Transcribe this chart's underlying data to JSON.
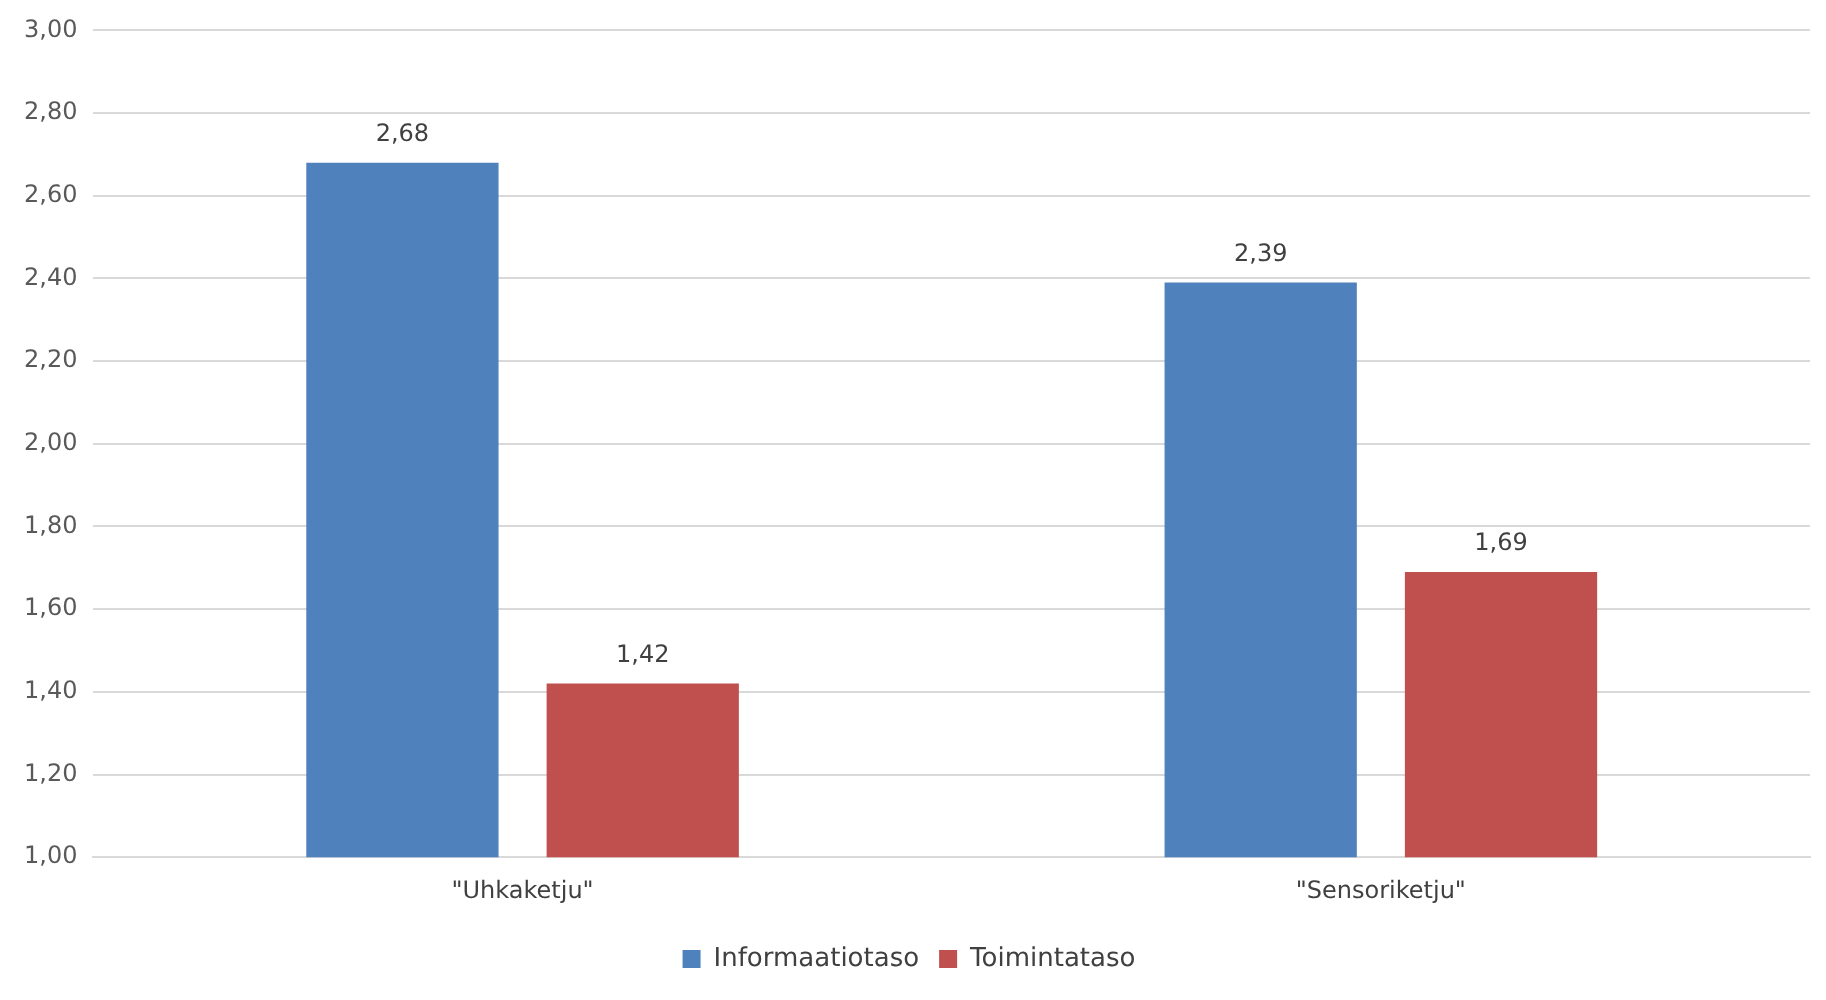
{
  "chart_data": {
    "type": "bar",
    "categories": [
      "\"Uhkaketju\"",
      "\"Sensoriketju\""
    ],
    "series": [
      {
        "name": "Informaatiotaso",
        "color": "#4f81bd",
        "values": [
          2.68,
          2.39
        ],
        "value_labels": [
          "2,68",
          "2,39"
        ]
      },
      {
        "name": "Toimintataso",
        "color": "#c0504d",
        "values": [
          1.42,
          1.69
        ],
        "value_labels": [
          "1,42",
          "1,69"
        ]
      }
    ],
    "ylim": [
      1,
      3
    ],
    "yticks": [
      {
        "value": 1,
        "label": "1,00"
      },
      {
        "value": 1.2,
        "label": "1,20"
      },
      {
        "value": 1.4,
        "label": "1,40"
      },
      {
        "value": 1.6,
        "label": "1,60"
      },
      {
        "value": 1.8,
        "label": "1,80"
      },
      {
        "value": 2,
        "label": "2,00"
      },
      {
        "value": 2.2,
        "label": "2,20"
      },
      {
        "value": 2.4,
        "label": "2,40"
      },
      {
        "value": 2.6,
        "label": "2,60"
      },
      {
        "value": 2.8,
        "label": "2,80"
      },
      {
        "value": 3,
        "label": "3,00"
      }
    ],
    "grid": "y",
    "legend": "bottom"
  }
}
